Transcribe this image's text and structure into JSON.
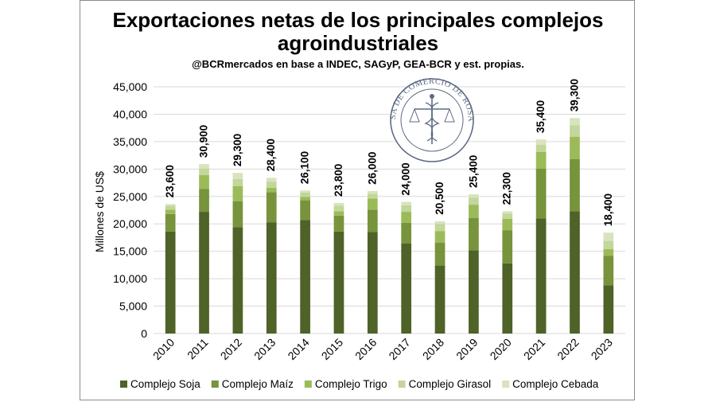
{
  "chart_data": {
    "type": "bar",
    "stacked": true,
    "title_line1": "Exportaciones netas de los principales complejos",
    "title_line2": "agroindustriales",
    "subtitle": "@BCRmercados  en base a INDEC, SAGyP, GEA-BCR y est. propias.",
    "ylabel": "Millones de US$",
    "xlabel": "",
    "ylim": [
      0,
      45000
    ],
    "yticks": [
      "0",
      "5,000",
      "10,000",
      "15,000",
      "20,000",
      "25,000",
      "30,000",
      "35,000",
      "40,000",
      "45,000"
    ],
    "ytick_values": [
      0,
      5000,
      10000,
      15000,
      20000,
      25000,
      30000,
      35000,
      40000,
      45000
    ],
    "grid": true,
    "legend_position": "bottom",
    "categories": [
      "2010",
      "2011",
      "2012",
      "2013",
      "2014",
      "2015",
      "2016",
      "2017",
      "2018",
      "2019",
      "2020",
      "2021",
      "2022",
      "2023"
    ],
    "series": [
      {
        "name": "Complejo Soja",
        "color": "#4f6228",
        "values": [
          18600,
          22200,
          19400,
          20300,
          20700,
          18600,
          18500,
          16400,
          12400,
          15200,
          12800,
          21000,
          22300,
          8800
        ]
      },
      {
        "name": "Complejo Maíz",
        "color": "#77933c",
        "values": [
          3200,
          4200,
          4700,
          5500,
          3600,
          2900,
          4100,
          3800,
          4200,
          5900,
          6000,
          9100,
          9500,
          5400
        ]
      },
      {
        "name": "Complejo Trigo",
        "color": "#9bbb59",
        "values": [
          800,
          2500,
          2800,
          800,
          600,
          800,
          2000,
          2000,
          2100,
          2400,
          2100,
          3000,
          4100,
          1200
        ]
      },
      {
        "name": "Complejo Girasol",
        "color": "#c3d69b",
        "values": [
          700,
          1200,
          1300,
          1100,
          800,
          1000,
          900,
          1200,
          1300,
          1300,
          1000,
          1300,
          2100,
          1500
        ]
      },
      {
        "name": "Complejo Cebada",
        "color": "#d7e4bd",
        "values": [
          300,
          800,
          1100,
          700,
          400,
          500,
          500,
          600,
          500,
          600,
          400,
          1000,
          1300,
          1500
        ]
      }
    ],
    "totals": [
      23600,
      30900,
      29300,
      28400,
      26100,
      23800,
      26000,
      24000,
      20500,
      25400,
      22300,
      35400,
      39300,
      18400
    ],
    "total_labels": [
      "23,600",
      "30,900",
      "29,300",
      "28,400",
      "26,100",
      "23,800",
      "26,000",
      "24,000",
      "20,500",
      "25,400",
      "22,300",
      "35,400",
      "39,300",
      "18,400"
    ]
  },
  "seal": {
    "text": "BOLSA DE COMERCIO DE ROSARIO",
    "color": "#5d6b85"
  }
}
